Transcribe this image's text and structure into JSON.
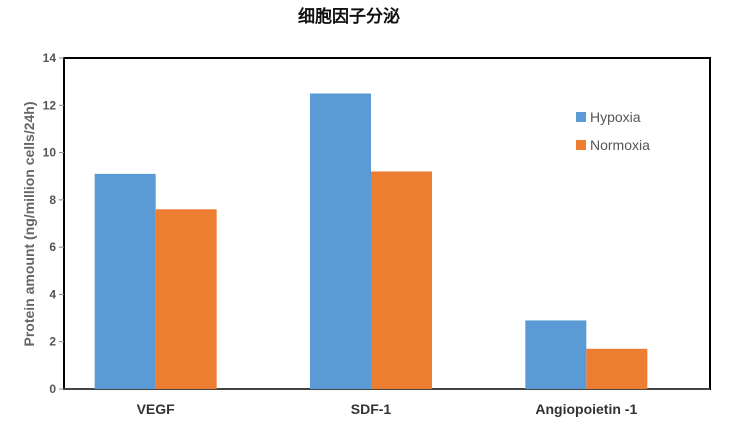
{
  "chart_data": {
    "type": "bar",
    "title": "细胞因子分泌",
    "xlabel": "",
    "ylabel": "Protein amount (ng/million cells/24h)",
    "categories": [
      "VEGF",
      "SDF-1",
      "Angiopoietin -1"
    ],
    "series": [
      {
        "name": "Hypoxia",
        "values": [
          9.1,
          12.5,
          2.9
        ],
        "color": "#5b9bd5"
      },
      {
        "name": "Normoxia",
        "values": [
          7.6,
          9.2,
          1.7
        ],
        "color": "#ed7d31"
      }
    ],
    "ylim": [
      0,
      14
    ],
    "yticks": [
      "0",
      "2",
      "4",
      "6",
      "8",
      "10",
      "12",
      "14"
    ],
    "grid": false,
    "legend_position": "top-right"
  }
}
